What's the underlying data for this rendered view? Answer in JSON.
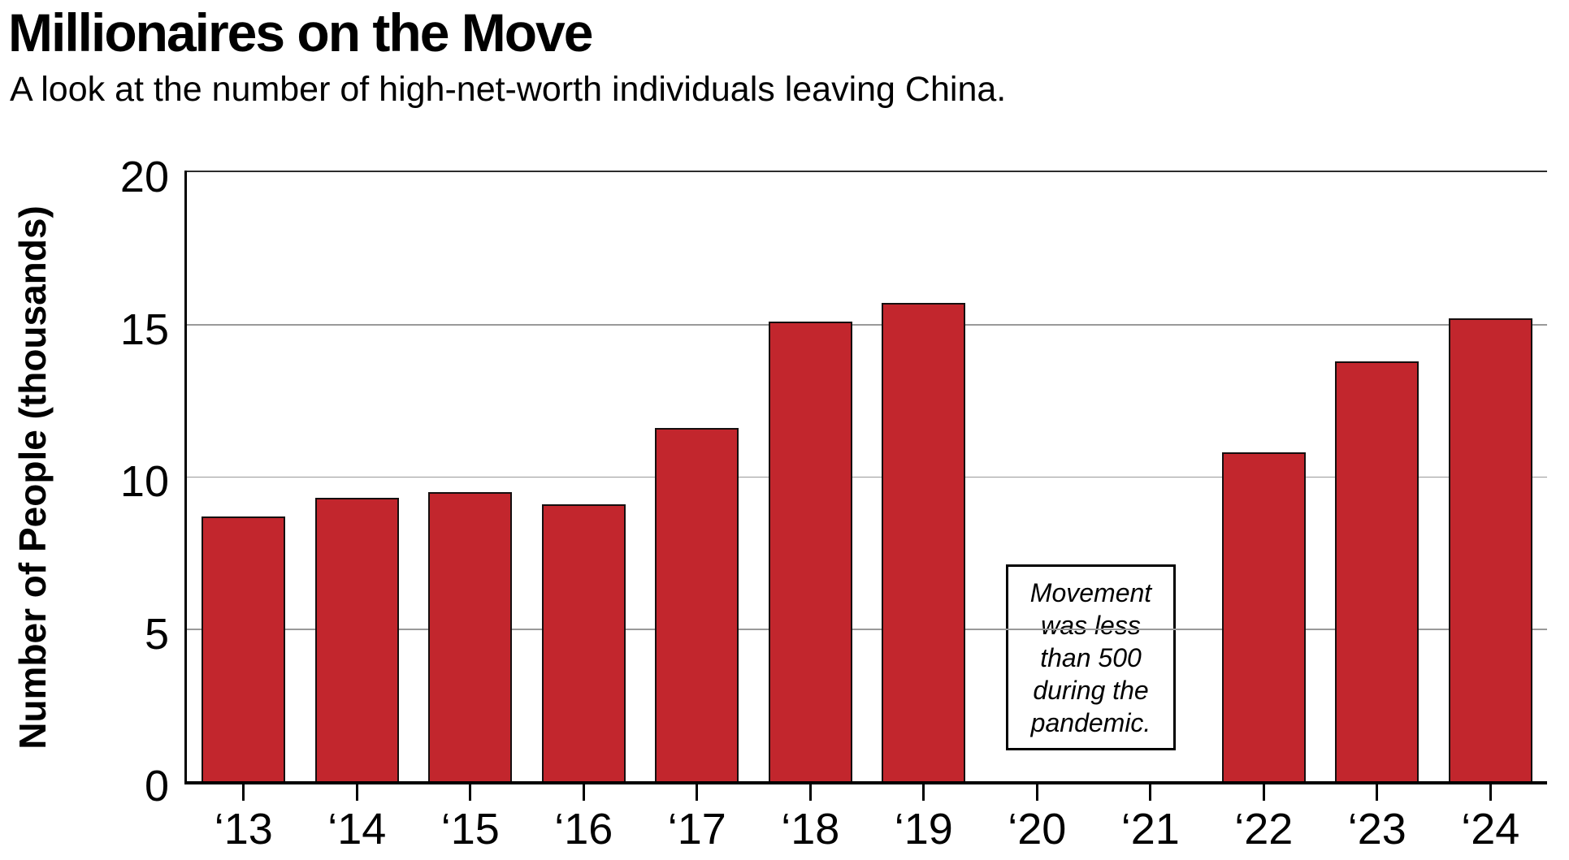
{
  "header": {
    "title": "Millionaires on the Move",
    "subtitle": "A look at the number of high-net-worth individuals leaving China."
  },
  "chart_data": {
    "type": "bar",
    "title": "Millionaires on the Move",
    "subtitle": "A look at the number of high-net-worth individuals leaving China.",
    "xlabel": "",
    "ylabel": "Number of People (thousands)",
    "categories": [
      "‘13",
      "‘14",
      "‘15",
      "‘16",
      "‘17",
      "‘18",
      "‘19",
      "‘20",
      "‘21",
      "‘22",
      "‘23",
      "‘24"
    ],
    "values": [
      8.7,
      9.3,
      9.5,
      9.1,
      11.6,
      15.1,
      15.7,
      0,
      0,
      10.8,
      13.8,
      15.2
    ],
    "ylim": [
      0,
      20
    ],
    "yticks": [
      0,
      5,
      10,
      15,
      20
    ],
    "grid": "horizontal",
    "legend": "none",
    "colors": {
      "bar_fill": "#c2262d",
      "bar_border": "#150f0f",
      "gridline": "#999999",
      "axis": "#000000"
    },
    "annotation": {
      "text": "Movement was less than 500 during the pandemic.",
      "lines": [
        "Movement",
        "was less",
        "than 500",
        "during the",
        "pandemic."
      ],
      "covers_categories": [
        "‘20",
        "‘21"
      ]
    }
  }
}
